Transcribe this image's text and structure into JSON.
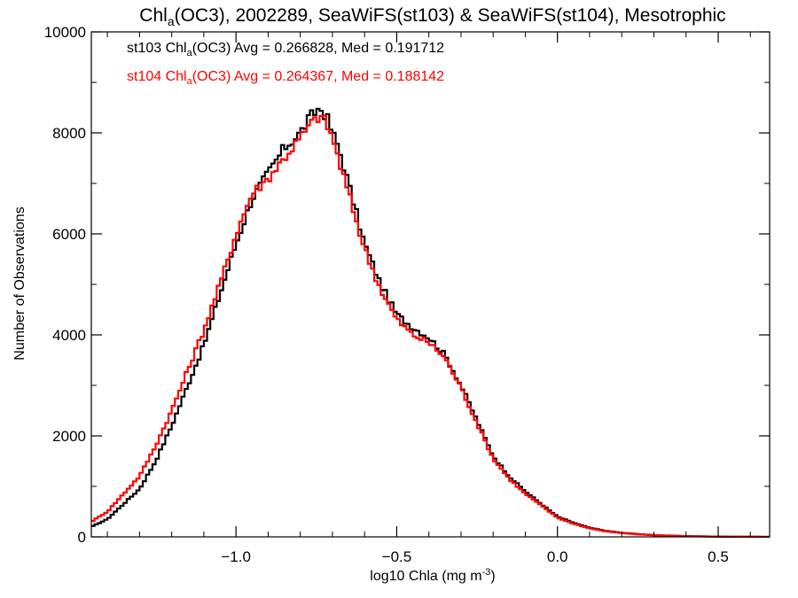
{
  "chart_data": {
    "type": "line",
    "title": {
      "pre": "Chl",
      "sub": "a",
      "post": "(OC3), 2002289, SeaWiFS(st103) & SeaWiFS(st104), Mesotrophic"
    },
    "xlabel": {
      "pre": "log10 Chla (mg m",
      "sup": "-3",
      "post": ")"
    },
    "ylabel": "Number of Observations",
    "xlim": [
      -1.45,
      0.66
    ],
    "ylim": [
      0,
      10000
    ],
    "xticks": [
      -1.0,
      -0.5,
      0.0,
      0.5
    ],
    "xtick_labels": [
      "−1.0",
      "−0.5",
      "0.0",
      "0.5"
    ],
    "yticks": [
      0,
      2000,
      4000,
      6000,
      8000,
      10000
    ],
    "ytick_labels": [
      "0",
      "2000",
      "4000",
      "6000",
      "8000",
      "10000"
    ],
    "grid": false,
    "legend_position": "top-left",
    "series": [
      {
        "name": "st103",
        "color": "#000000",
        "label": {
          "pre": "st103 Chl",
          "sub": "a",
          "post": "(OC3) Avg = 0.266828, Med = 0.191712"
        },
        "x": [
          -1.45,
          -1.4,
          -1.35,
          -1.3,
          -1.25,
          -1.2,
          -1.15,
          -1.1,
          -1.05,
          -1.0,
          -0.95,
          -0.9,
          -0.85,
          -0.8,
          -0.77,
          -0.74,
          -0.72,
          -0.7,
          -0.68,
          -0.65,
          -0.6,
          -0.55,
          -0.5,
          -0.45,
          -0.4,
          -0.35,
          -0.3,
          -0.25,
          -0.2,
          -0.15,
          -0.1,
          -0.05,
          0.0,
          0.05,
          0.1,
          0.15,
          0.2,
          0.25,
          0.3,
          0.35,
          0.4,
          0.45,
          0.5,
          0.55,
          0.6,
          0.65
        ],
        "y": [
          200,
          350,
          650,
          950,
          1500,
          2200,
          3000,
          3800,
          4800,
          5800,
          6700,
          7200,
          7700,
          8000,
          8300,
          8500,
          8350,
          8000,
          7700,
          7000,
          5800,
          5000,
          4400,
          4150,
          3950,
          3600,
          3000,
          2300,
          1600,
          1200,
          900,
          650,
          400,
          280,
          180,
          120,
          80,
          55,
          35,
          25,
          15,
          10,
          5,
          3,
          2,
          1
        ]
      },
      {
        "name": "st104",
        "color": "#ff0000",
        "label": {
          "pre": "st104 Chl",
          "sub": "a",
          "post": "(OC3) Avg = 0.264367, Med = 0.188142"
        },
        "x": [
          -1.45,
          -1.4,
          -1.35,
          -1.3,
          -1.25,
          -1.2,
          -1.15,
          -1.1,
          -1.05,
          -1.0,
          -0.95,
          -0.9,
          -0.85,
          -0.8,
          -0.77,
          -0.74,
          -0.72,
          -0.7,
          -0.68,
          -0.65,
          -0.6,
          -0.55,
          -0.5,
          -0.45,
          -0.4,
          -0.35,
          -0.3,
          -0.25,
          -0.2,
          -0.15,
          -0.1,
          -0.05,
          0.0,
          0.05,
          0.1,
          0.15,
          0.2,
          0.25,
          0.3,
          0.35,
          0.4,
          0.45,
          0.5,
          0.55,
          0.6,
          0.65
        ],
        "y": [
          300,
          500,
          850,
          1200,
          1800,
          2500,
          3300,
          4100,
          5000,
          6000,
          6800,
          7100,
          7500,
          7900,
          8150,
          8350,
          8200,
          7900,
          7450,
          6800,
          5700,
          4900,
          4300,
          4000,
          3850,
          3550,
          2950,
          2250,
          1550,
          1150,
          850,
          620,
          380,
          260,
          170,
          110,
          75,
          50,
          32,
          22,
          14,
          9,
          5,
          3,
          2,
          1
        ]
      }
    ]
  }
}
